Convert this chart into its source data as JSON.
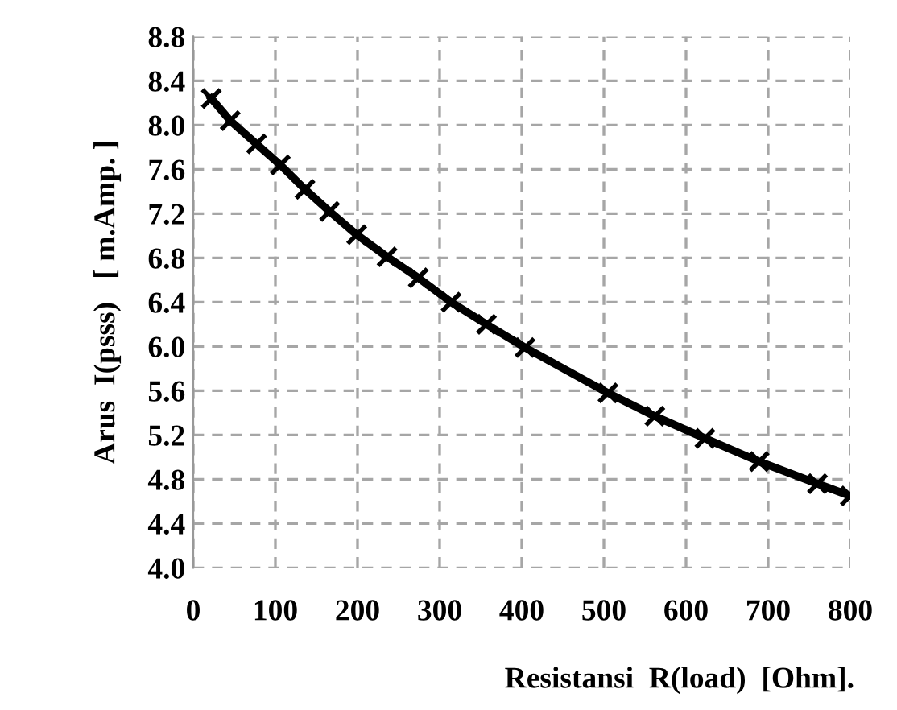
{
  "chart_data": {
    "type": "line",
    "xlabel": "Resistansi  R(load)  [Ohm].",
    "ylabel": "Arus  I(psss)   [ m.Amp. ]",
    "x": [
      22,
      45,
      77,
      106,
      136,
      166,
      199,
      236,
      274,
      314,
      357,
      404,
      505,
      562,
      623,
      689,
      760,
      800
    ],
    "series": [
      {
        "color": "#000000",
        "values": [
          8.24,
          8.04,
          7.83,
          7.64,
          7.42,
          7.22,
          7.01,
          6.81,
          6.62,
          6.4,
          6.2,
          5.99,
          5.58,
          5.37,
          5.17,
          4.96,
          4.76,
          4.65
        ]
      }
    ],
    "xlim": [
      0,
      800
    ],
    "xticks": [
      0,
      100,
      200,
      300,
      400,
      500,
      600,
      700,
      800
    ],
    "ylim": [
      4.0,
      8.8
    ],
    "yticks": [
      {
        "value": 4.0,
        "label": "4.0"
      },
      {
        "value": 4.4,
        "label": "4.4"
      },
      {
        "value": 4.8,
        "label": "4.8"
      },
      {
        "value": 5.2,
        "label": "5.2"
      },
      {
        "value": 5.6,
        "label": "5.6"
      },
      {
        "value": 6.0,
        "label": "6.0"
      },
      {
        "value": 6.4,
        "label": "6.4"
      },
      {
        "value": 6.8,
        "label": "6.8"
      },
      {
        "value": 7.2,
        "label": "7.2"
      },
      {
        "value": 7.6,
        "label": "7.6"
      },
      {
        "value": 8.0,
        "label": "8.0"
      },
      {
        "value": 8.4,
        "label": "8.4"
      },
      {
        "value": 8.8,
        "label": "8.8"
      }
    ],
    "grid": true,
    "marker": "cross",
    "line_style": "solid"
  }
}
